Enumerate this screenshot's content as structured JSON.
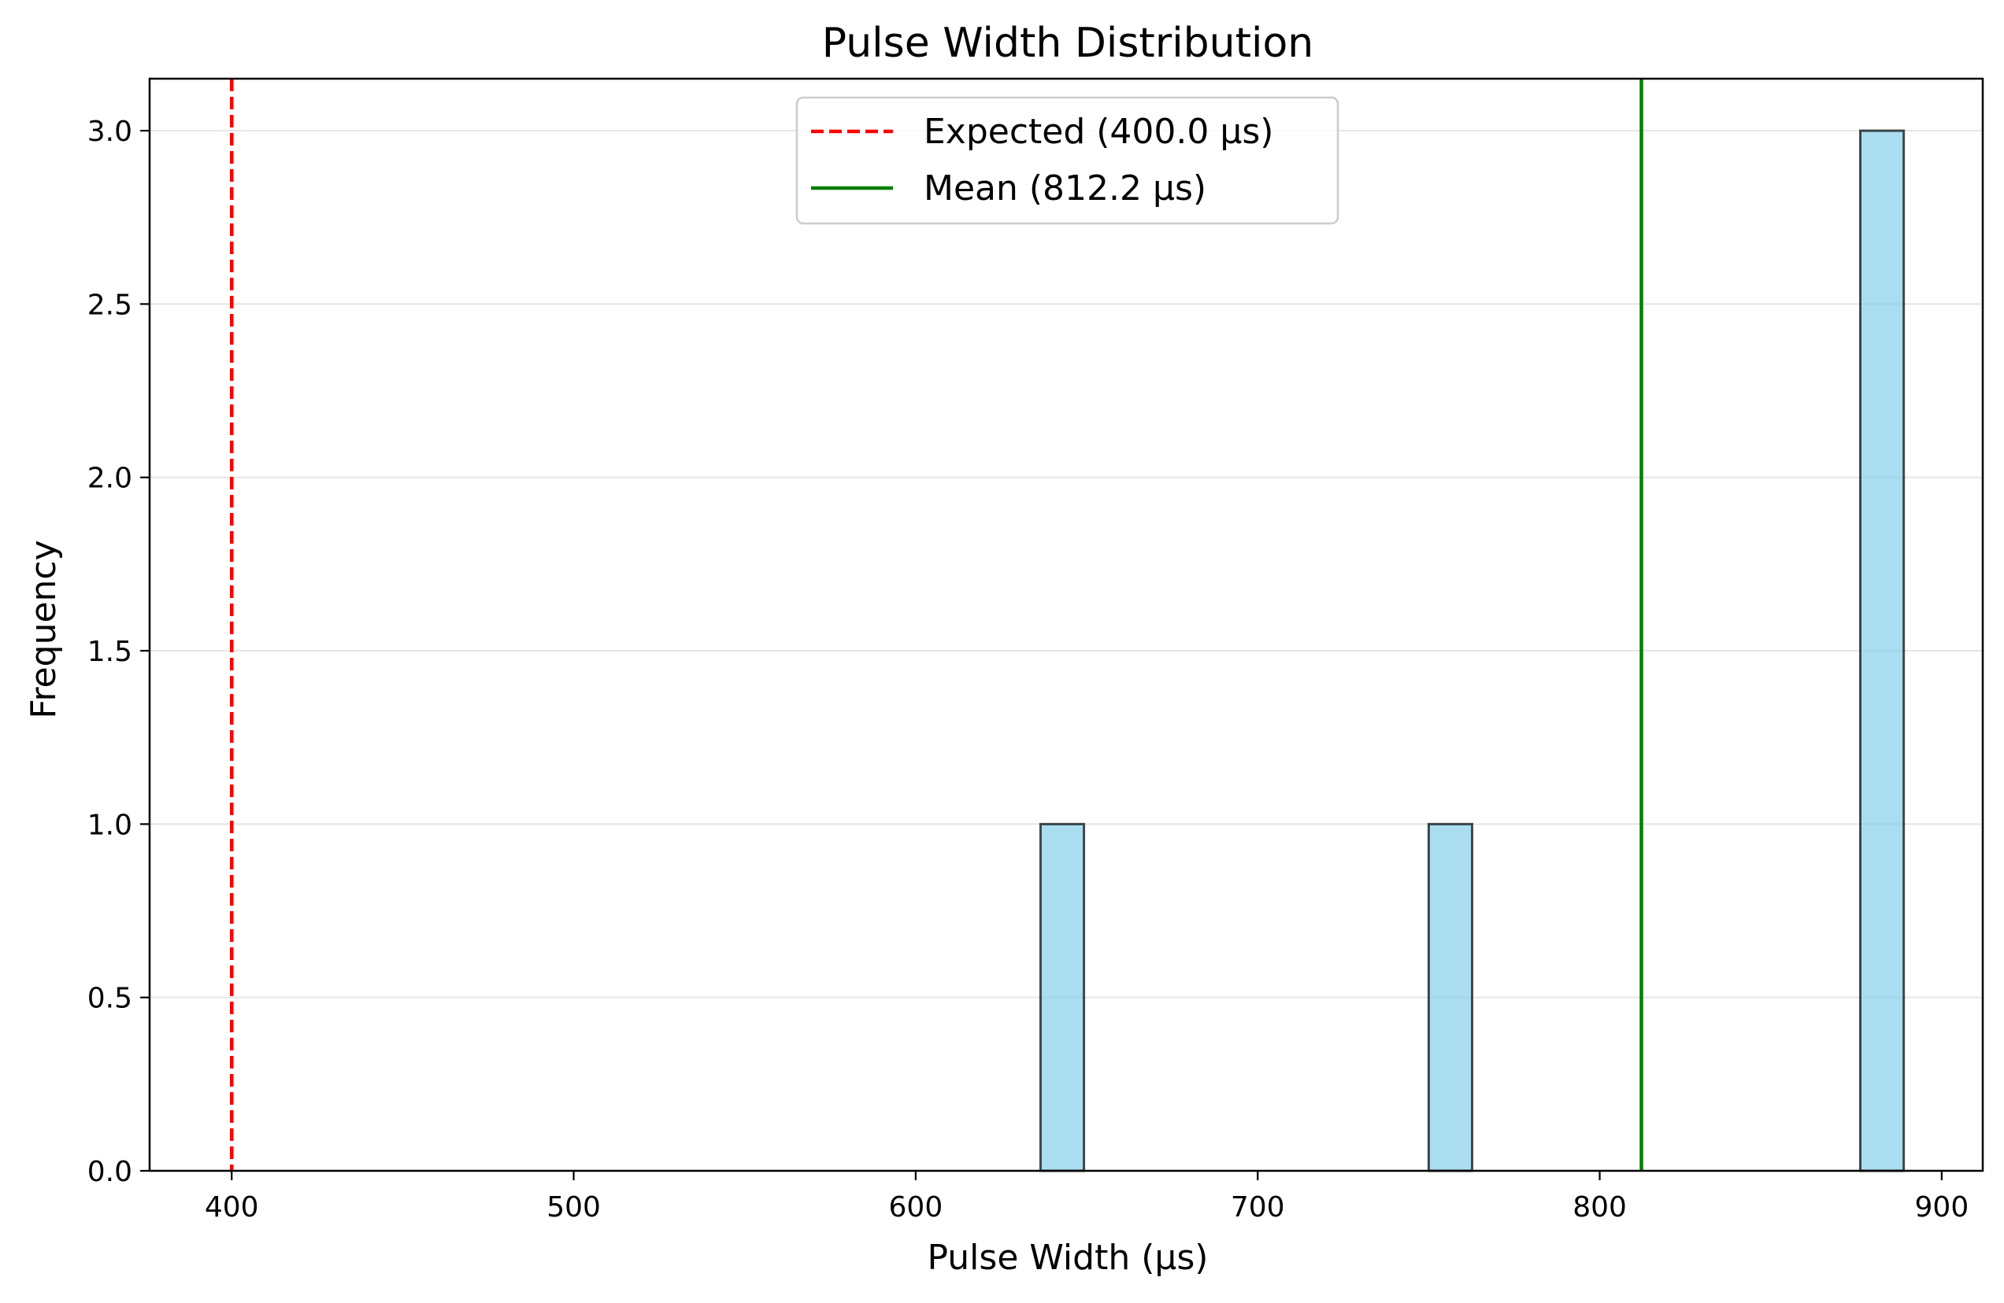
{
  "chart_data": {
    "type": "bar",
    "title": "Pulse Width Distribution",
    "xlabel": "Pulse Width (μs)",
    "ylabel": "Frequency",
    "xlim": [
      376,
      912
    ],
    "ylim": [
      0,
      3.15
    ],
    "xticks": [
      400,
      500,
      600,
      700,
      800,
      900
    ],
    "yticks": [
      0.0,
      0.5,
      1.0,
      1.5,
      2.0,
      2.5,
      3.0
    ],
    "grid": "horizontal",
    "legend_position": "top-center",
    "bars": [
      {
        "x0": 636.5,
        "x1": 649.2,
        "value": 1
      },
      {
        "x0": 750.0,
        "x1": 762.7,
        "value": 1
      },
      {
        "x0": 876.2,
        "x1": 888.9,
        "value": 3
      }
    ],
    "reference_lines": [
      {
        "name": "Expected (400.0 μs)",
        "x": 400.0,
        "style": "dashed",
        "color": "#ff0000"
      },
      {
        "name": "Mean (812.2 μs)",
        "x": 812.2,
        "style": "solid",
        "color": "#008000"
      }
    ],
    "colors": {
      "bar_fill": "#87ceeb",
      "bar_edge": "#000000"
    }
  }
}
